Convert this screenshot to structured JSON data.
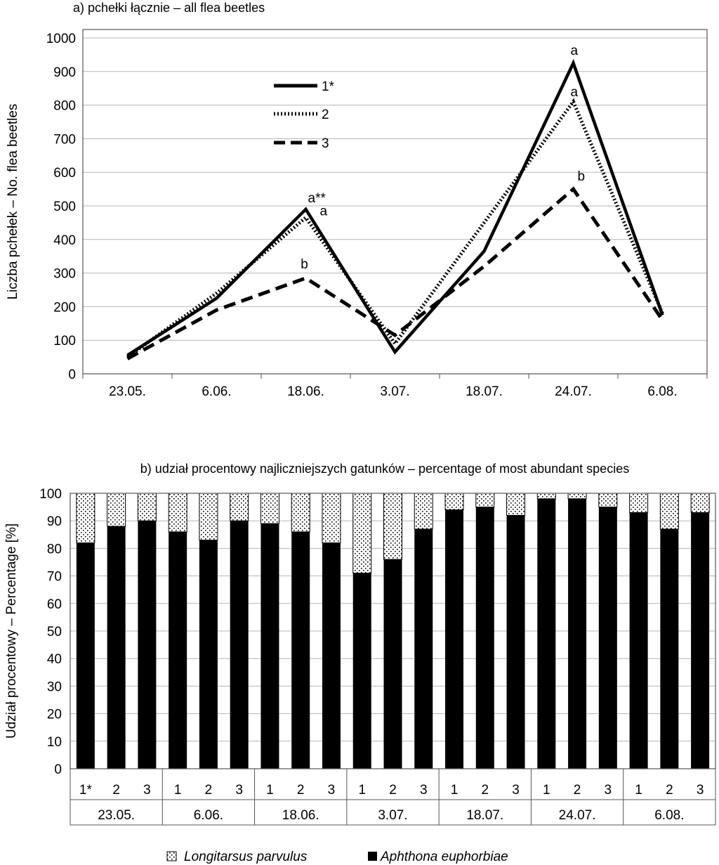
{
  "chart_data": [
    {
      "type": "line",
      "title": "a) pchełki łącznie  – all flea beetles",
      "ylabel": "Liczba pchełek – No. flea beetles",
      "xlabel": "",
      "categories": [
        "23.05.",
        "6.06.",
        "18.06.",
        "3.07.",
        "18.07.",
        "24.07.",
        "6.08."
      ],
      "ylim": [
        0,
        1000
      ],
      "yticks": [
        "0",
        "100",
        "200",
        "300",
        "400",
        "500",
        "600",
        "700",
        "800",
        "900",
        "1000"
      ],
      "grid": true,
      "legend_position": "top-left",
      "series": [
        {
          "name": "1*",
          "style": "solid",
          "values": [
            55,
            225,
            490,
            65,
            365,
            925,
            175
          ]
        },
        {
          "name": "2",
          "style": "dotted",
          "values": [
            50,
            240,
            465,
            90,
            450,
            810,
            180
          ]
        },
        {
          "name": "3",
          "style": "dashed",
          "values": [
            45,
            190,
            285,
            115,
            320,
            550,
            160
          ]
        }
      ],
      "annotations": [
        {
          "text": "a**",
          "x": "18.06.",
          "y": 490
        },
        {
          "text": "a",
          "x": "18.06.",
          "y": 465
        },
        {
          "text": "b",
          "x": "18.06.",
          "y": 285
        },
        {
          "text": "a",
          "x": "24.07.",
          "y": 925
        },
        {
          "text": "a",
          "x": "24.07.",
          "y": 810
        },
        {
          "text": "b",
          "x": "24.07.",
          "y": 550
        }
      ]
    },
    {
      "type": "bar",
      "stacked": true,
      "title": "b) udział procentowy najliczniejszych gatunków – percentage of most abundant species",
      "ylabel": "Udział procentowy – Percentage [%]",
      "ylim": [
        0,
        100
      ],
      "yticks": [
        "0",
        "10",
        "20",
        "30",
        "40",
        "50",
        "60",
        "70",
        "80",
        "90",
        "100"
      ],
      "grid": true,
      "legend_position": "bottom",
      "groups": [
        "23.05.",
        "6.06.",
        "18.06.",
        "3.07.",
        "18.07.",
        "24.07.",
        "6.08."
      ],
      "subcategories": [
        [
          "1*",
          "2",
          "3"
        ],
        [
          "1",
          "2",
          "3"
        ],
        [
          "1",
          "2",
          "3"
        ],
        [
          "1",
          "2",
          "3"
        ],
        [
          "1",
          "2",
          "3"
        ],
        [
          "1",
          "2",
          "3"
        ],
        [
          "1",
          "2",
          "3"
        ]
      ],
      "series": [
        {
          "name": "Aphthona euphorbiae",
          "color": "#000000",
          "values": [
            82,
            88,
            90,
            86,
            83,
            90,
            89,
            86,
            82,
            71,
            76,
            87,
            94,
            95,
            92,
            98,
            98,
            95,
            93,
            87,
            93
          ]
        },
        {
          "name": "Longitarsus parvulus",
          "color": "dotted",
          "values": [
            18,
            12,
            10,
            14,
            17,
            10,
            11,
            14,
            18,
            29,
            24,
            13,
            6,
            5,
            8,
            2,
            2,
            5,
            7,
            13,
            7
          ]
        }
      ]
    }
  ]
}
